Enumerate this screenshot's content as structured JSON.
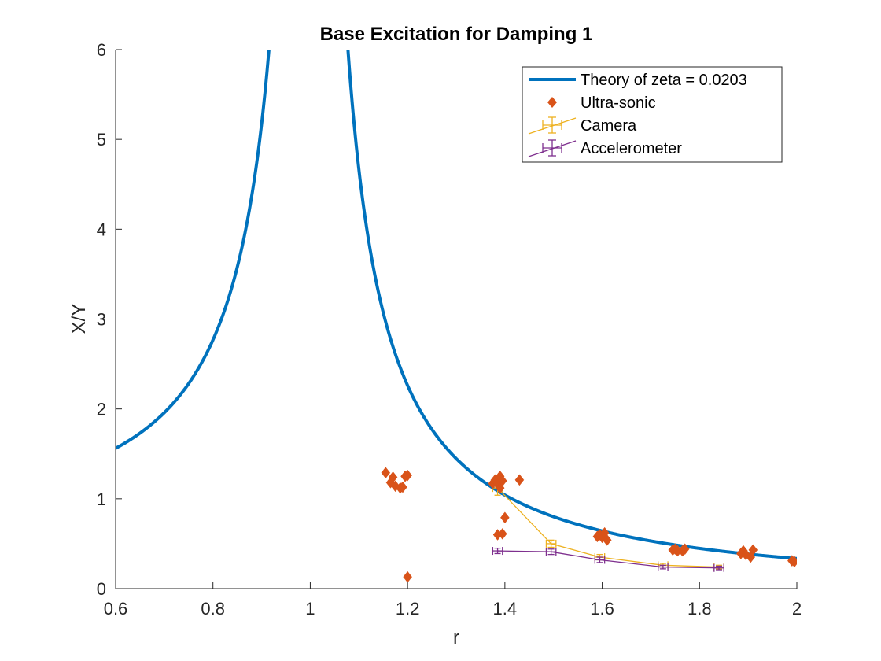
{
  "chart_data": {
    "type": "scatter",
    "title": "Base Excitation for Damping 1",
    "xlabel": "r",
    "ylabel": "X/Y",
    "xlim": [
      0.6,
      2
    ],
    "ylim": [
      0,
      6
    ],
    "xticks": [
      0.6,
      0.8,
      1,
      1.2,
      1.4,
      1.6,
      1.8,
      2
    ],
    "xtick_labels": [
      "0.6",
      "0.8",
      "1",
      "1.2",
      "1.4",
      "1.6",
      "1.8",
      "2"
    ],
    "yticks": [
      0,
      1,
      2,
      3,
      4,
      5,
      6
    ],
    "ytick_labels": [
      "0",
      "1",
      "2",
      "3",
      "4",
      "5",
      "6"
    ],
    "grid": false,
    "legend_position": "top-right",
    "series": [
      {
        "name": "Theory of zeta = 0.0203",
        "kind": "theory-line",
        "zeta": 0.0203,
        "r_range": [
          0.6,
          2
        ],
        "color": "#0072BD"
      },
      {
        "name": "Ultra-sonic",
        "kind": "scatter",
        "marker": "diamond",
        "color": "#D95319",
        "points": [
          [
            1.155,
            1.29
          ],
          [
            1.165,
            1.18
          ],
          [
            1.17,
            1.24
          ],
          [
            1.175,
            1.14
          ],
          [
            1.185,
            1.12
          ],
          [
            1.19,
            1.13
          ],
          [
            1.195,
            1.25
          ],
          [
            1.2,
            1.26
          ],
          [
            1.2,
            0.13
          ],
          [
            1.375,
            1.17
          ],
          [
            1.38,
            1.21
          ],
          [
            1.385,
            1.16
          ],
          [
            1.385,
            0.6
          ],
          [
            1.39,
            1.25
          ],
          [
            1.39,
            1.12
          ],
          [
            1.395,
            1.2
          ],
          [
            1.395,
            0.61
          ],
          [
            1.4,
            0.79
          ],
          [
            1.43,
            1.21
          ],
          [
            1.59,
            0.58
          ],
          [
            1.595,
            0.6
          ],
          [
            1.6,
            0.57
          ],
          [
            1.605,
            0.62
          ],
          [
            1.61,
            0.54
          ],
          [
            1.745,
            0.43
          ],
          [
            1.75,
            0.44
          ],
          [
            1.755,
            0.42
          ],
          [
            1.765,
            0.42
          ],
          [
            1.77,
            0.44
          ],
          [
            1.885,
            0.39
          ],
          [
            1.89,
            0.42
          ],
          [
            1.895,
            0.38
          ],
          [
            1.905,
            0.35
          ],
          [
            1.91,
            0.43
          ],
          [
            1.99,
            0.31
          ],
          [
            1.995,
            0.3
          ]
        ]
      },
      {
        "name": "Camera",
        "kind": "errorbar",
        "color": "#EDB120",
        "points": [
          [
            1.385,
            1.12
          ],
          [
            1.495,
            0.5
          ],
          [
            1.595,
            0.35
          ],
          [
            1.725,
            0.26
          ],
          [
            1.84,
            0.24
          ]
        ],
        "xerr": [
          0.01,
          0.01,
          0.01,
          0.01,
          0.01
        ],
        "yerr": [
          0.08,
          0.04,
          0.03,
          0.02,
          0.02
        ]
      },
      {
        "name": "Accelerometer",
        "kind": "errorbar",
        "color": "#7E2F8E",
        "points": [
          [
            1.385,
            0.42
          ],
          [
            1.495,
            0.41
          ],
          [
            1.595,
            0.32
          ],
          [
            1.725,
            0.24
          ],
          [
            1.84,
            0.23
          ]
        ],
        "xerr": [
          0.01,
          0.01,
          0.01,
          0.01,
          0.01
        ],
        "yerr": [
          0.03,
          0.03,
          0.03,
          0.02,
          0.02
        ]
      }
    ]
  }
}
